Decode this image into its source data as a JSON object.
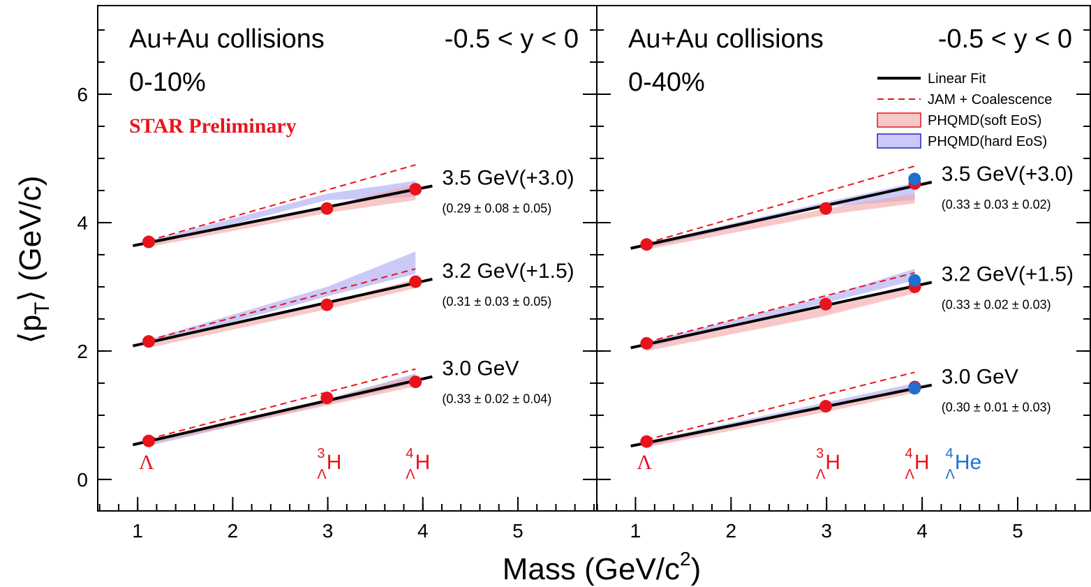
{
  "figure": {
    "xlabel": [
      "Mass (GeV/c",
      "2",
      ")"
    ],
    "ylabel": [
      "⟨p",
      "T",
      "⟩ (GeV/c)"
    ],
    "colors": {
      "fit": "#000000",
      "jam": "#e8141c",
      "soft": "#f4a3a3",
      "soft_edge": "#e8141c",
      "hard": "#a9a6f2",
      "hard_edge": "#2020d0"
    }
  },
  "chart_data": [
    {
      "type": "scatter",
      "title": "Au+Au collisions",
      "centrality": "0-10%",
      "rapidity": "-0.5 < y < 0",
      "preliminary": "STAR Preliminary",
      "xlim": [
        0.58,
        5.83
      ],
      "ylim": [
        -0.49,
        7.38
      ],
      "xticks": [
        1,
        2,
        3,
        4,
        5
      ],
      "yticks": [
        0,
        2,
        4,
        6
      ],
      "ytick_labels": true,
      "particles": [
        {
          "base": "Λ",
          "mass": 1.116,
          "color": "#e8141c"
        },
        {
          "base": "H",
          "sup": "3",
          "sub": "Λ",
          "mass": 2.991,
          "color": "#e8141c"
        },
        {
          "base": "H",
          "sup": "4",
          "sub": "Λ",
          "mass": 3.923,
          "color": "#e8141c"
        }
      ],
      "groups": [
        {
          "name": "3.5 GeV(+3.0)",
          "slope": "(0.29 ± 0.08 ± 0.05)",
          "values": [
            3.7,
            4.22,
            4.52
          ],
          "fit": {
            "x": [
              0.95,
              4.1
            ],
            "y": [
              3.64,
              4.57
            ]
          },
          "jam": {
            "x": [
              1.116,
              3.923
            ],
            "y": [
              3.72,
              4.9
            ]
          },
          "soft": {
            "low": [
              3.62,
              4.15,
              4.35
            ],
            "high": [
              3.7,
              4.25,
              4.6
            ]
          },
          "hard": {
            "low": [
              3.64,
              4.35,
              4.4
            ],
            "high": [
              3.72,
              4.45,
              4.65
            ]
          }
        },
        {
          "name": "3.2 GeV(+1.5)",
          "slope": "(0.31 ± 0.03 ± 0.05)",
          "values": [
            2.15,
            2.72,
            3.08
          ],
          "fit": {
            "x": [
              0.95,
              4.1
            ],
            "y": [
              2.08,
              3.12
            ]
          },
          "jam": {
            "x": [
              1.116,
              3.923
            ],
            "y": [
              2.17,
              3.28
            ]
          },
          "soft": {
            "low": [
              2.05,
              2.65,
              2.98
            ],
            "high": [
              2.15,
              2.75,
              3.12
            ]
          },
          "hard": {
            "low": [
              2.1,
              2.85,
              3.2
            ],
            "high": [
              2.18,
              3.0,
              3.55
            ]
          }
        },
        {
          "name": "3.0 GeV",
          "slope": "(0.33 ± 0.02 ± 0.04)",
          "values": [
            0.6,
            1.27,
            1.52
          ],
          "fit": {
            "x": [
              0.95,
              4.1
            ],
            "y": [
              0.54,
              1.6
            ]
          },
          "jam": {
            "x": [
              1.116,
              3.923
            ],
            "y": [
              0.63,
              1.72
            ]
          },
          "soft": {
            "low": [
              0.55,
              1.15,
              1.45
            ],
            "high": [
              0.62,
              1.25,
              1.62
            ]
          },
          "hard": {
            "low": [
              0.52,
              1.18,
              1.5
            ],
            "high": [
              0.6,
              1.25,
              1.65
            ]
          }
        }
      ]
    },
    {
      "type": "scatter",
      "title": "Au+Au collisions",
      "centrality": "0-40%",
      "rapidity": "-0.5 < y < 0",
      "xlim": [
        0.595,
        5.76
      ],
      "ylim": [
        -0.49,
        7.38
      ],
      "xticks": [
        1,
        2,
        3,
        4,
        5
      ],
      "yticks": [
        0,
        2,
        4,
        6
      ],
      "ytick_labels": false,
      "legend": [
        {
          "name": "Linear Fit",
          "kind": "fit"
        },
        {
          "name": "JAM + Coalescence",
          "kind": "jam"
        },
        {
          "name": "PHQMD(soft EoS)",
          "kind": "soft"
        },
        {
          "name": "PHQMD(hard EoS)",
          "kind": "hard"
        }
      ],
      "particles": [
        {
          "base": "Λ",
          "mass": 1.116,
          "color": "#e8141c"
        },
        {
          "base": "H",
          "sup": "3",
          "sub": "Λ",
          "mass": 2.991,
          "color": "#e8141c"
        },
        {
          "base": "H",
          "sup": "4",
          "sub": "Λ",
          "mass": 3.923,
          "color": "#e8141c"
        },
        {
          "base": "He",
          "sup": "4",
          "sub": "Λ",
          "mass": 3.921,
          "color": "#1f6fd0"
        }
      ],
      "groups": [
        {
          "name": "3.5 GeV(+3.0)",
          "slope": "(0.33 ± 0.03 ± 0.02)",
          "values": [
            3.66,
            4.22,
            4.61,
            4.68
          ],
          "fit": {
            "x": [
              0.95,
              4.1
            ],
            "y": [
              3.6,
              4.63
            ]
          },
          "jam": {
            "x": [
              1.116,
              3.923
            ],
            "y": [
              3.68,
              4.88
            ]
          },
          "soft": {
            "low": [
              3.58,
              4.12,
              4.3
            ],
            "high": [
              3.66,
              4.22,
              4.45
            ]
          },
          "hard": {
            "low": [
              3.6,
              4.25,
              4.35
            ],
            "high": [
              3.68,
              4.32,
              4.62
            ]
          }
        },
        {
          "name": "3.2 GeV(+1.5)",
          "slope": "(0.33 ± 0.02 ± 0.03)",
          "values": [
            2.12,
            2.73,
            3.0,
            3.1
          ],
          "fit": {
            "x": [
              0.95,
              4.1
            ],
            "y": [
              2.05,
              3.07
            ]
          },
          "jam": {
            "x": [
              1.116,
              3.923
            ],
            "y": [
              2.14,
              3.22
            ]
          },
          "soft": {
            "low": [
              2.0,
              2.55,
              2.9
            ],
            "high": [
              2.1,
              2.68,
              3.0
            ]
          },
          "hard": {
            "low": [
              2.05,
              2.75,
              3.1
            ],
            "high": [
              2.14,
              2.85,
              3.28
            ]
          }
        },
        {
          "name": "3.0 GeV",
          "slope": "(0.30 ± 0.01 ± 0.03)",
          "values": [
            0.59,
            1.14,
            1.44,
            1.42
          ],
          "fit": {
            "x": [
              0.95,
              4.1
            ],
            "y": [
              0.52,
              1.47
            ]
          },
          "jam": {
            "x": [
              1.116,
              3.923
            ],
            "y": [
              0.62,
              1.67
            ]
          },
          "soft": {
            "low": [
              0.5,
              1.05,
              1.35
            ],
            "high": [
              0.58,
              1.15,
              1.45
            ]
          },
          "hard": {
            "low": [
              0.52,
              1.12,
              1.4
            ],
            "high": [
              0.6,
              1.2,
              1.5
            ]
          }
        }
      ]
    }
  ]
}
